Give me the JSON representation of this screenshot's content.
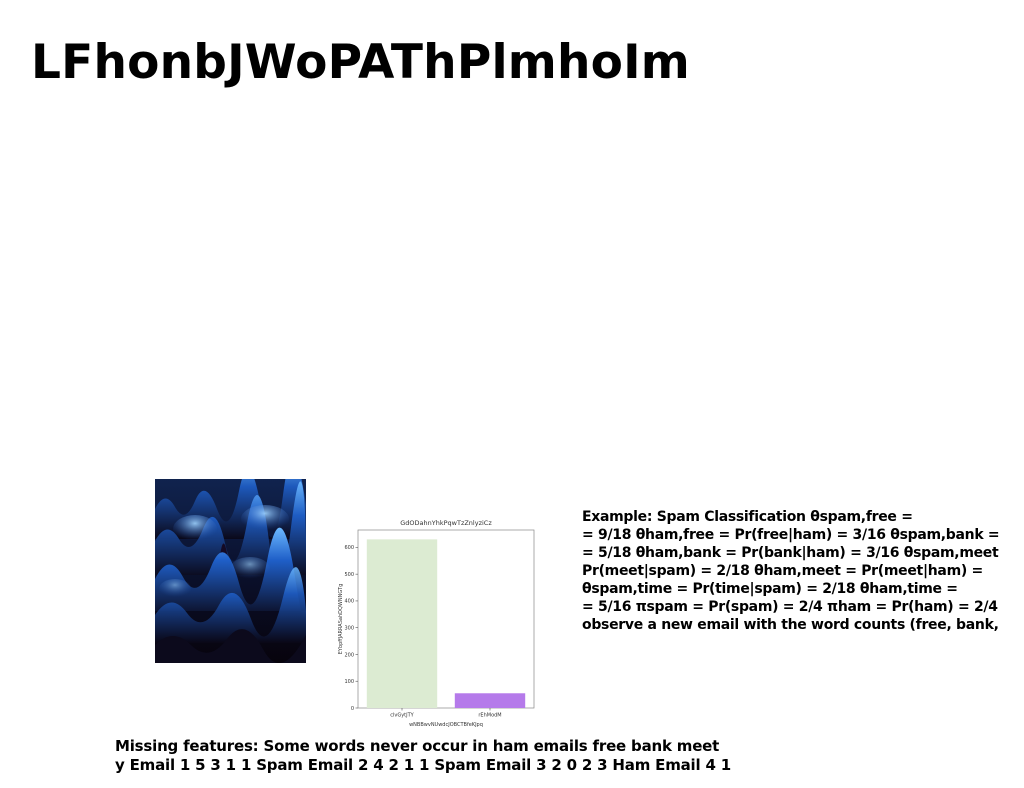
{
  "slide": {
    "title": "LFhonbJWoPAThPlmhoIm",
    "example_text": "Example: Spam Classification θspam,free =\n= 9/18 θham,free = Pr(free|ham) = 3/16 θspam,bank =\n= 5/18 θham,bank = Pr(bank|ham) = 3/16 θspam,meet\nPr(meet|spam) = 2/18 θham,meet = Pr(meet|ham) =\nθspam,time = Pr(time|spam) = 2/18 θham,time =\n= 5/16 πspam = Pr(spam) = 2/4 πham = Pr(ham) = 2/4\nobserve a new email with the word counts (free, bank,",
    "missing_text": "Missing features: Some words never occur in ham emails free bank meet\ny Email 1 5 3 1 1 Spam Email 2 4 2 1 1 Spam Email 3 2 0 2 3 Ham Email 4 1"
  },
  "colors": {
    "wave_dark": "#08040f",
    "wave_blue": "#1e6bd6",
    "wave_glow": "#5fb0ff",
    "bar_1": "#dcebd2",
    "bar_2": "#b57aea"
  },
  "chart_data": {
    "type": "bar",
    "title": "GdODahnYhkPqwTzZnlyziCz",
    "xlabel": "wNBBwvNUwdcJOBCTBfeKJpq",
    "ylabel": "EYbpffJARRASahDQWNNGTg",
    "categories": [
      "clvGytJTY",
      "rEhModM"
    ],
    "values": [
      630,
      55
    ],
    "ylim": [
      0,
      665
    ],
    "yticks": [
      0,
      100,
      200,
      300,
      400,
      500,
      600
    ],
    "colors": [
      "#dcebd2",
      "#b57aea"
    ],
    "grid": false
  }
}
